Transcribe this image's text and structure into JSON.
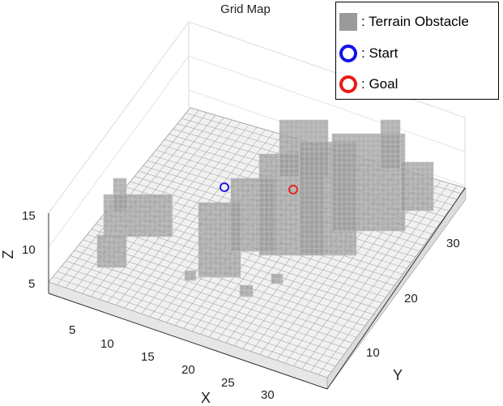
{
  "chart_data": {
    "type": "3d-grid-map",
    "title": "Grid Map",
    "xlabel": "X",
    "ylabel": "Y",
    "zlabel": "Z",
    "x_ticks": [
      "5",
      "10",
      "15",
      "20",
      "25",
      "30"
    ],
    "y_ticks": [
      "10",
      "20",
      "30"
    ],
    "z_ticks": [
      "5",
      "10",
      "15"
    ],
    "grid": true,
    "colors": {
      "obstacle": "#9a9a9a",
      "ground": "#f1f1f1",
      "start": "#1313e8",
      "goal": "#ea1b1b"
    }
  },
  "legend": {
    "placement": "top-right",
    "items": [
      {
        "symbol": "gray-square",
        "label": ": Terrain Obstacle"
      },
      {
        "symbol": "blue-ring",
        "label": ": Start"
      },
      {
        "symbol": "red-ring",
        "label": ": Goal"
      }
    ]
  }
}
